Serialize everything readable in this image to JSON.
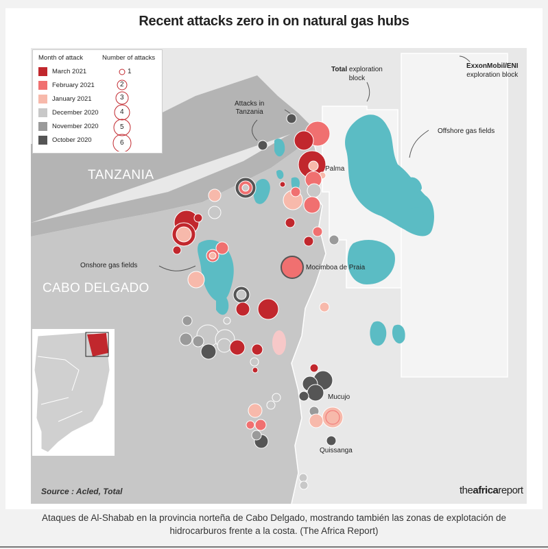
{
  "title": "Recent attacks zero in on natural gas hubs",
  "legend": {
    "month_heading": "Month of attack",
    "count_heading": "Number of attacks",
    "months": [
      {
        "label": "March 2021",
        "color": "#c1272d"
      },
      {
        "label": "February 2021",
        "color": "#f07070"
      },
      {
        "label": "January 2021",
        "color": "#f7b9ab"
      },
      {
        "label": "December 2020",
        "color": "#c8c8c8"
      },
      {
        "label": "November 2020",
        "color": "#9a9a9a"
      },
      {
        "label": "October 2020",
        "color": "#555555"
      }
    ],
    "counts": [
      "1",
      "2",
      "3",
      "4",
      "5",
      "6"
    ]
  },
  "labels": {
    "tanzania": "TANZANIA",
    "cabo_delgado": "CABO DELGADO",
    "total_block_bold": "Total",
    "total_block_rest": " exploration",
    "total_block_line2": "block",
    "exxon_bold": "ExxonMobil/ENI",
    "exxon_line2": "exploration block",
    "offshore": "Offshore gas fields",
    "onshore": "Onshore gas fields",
    "attacks_tz_1": "Attacks in",
    "attacks_tz_2": "Tanzania",
    "palma": "Palma",
    "mocimboa": "Mocimboa de Praia",
    "mucujo": "Mucujo",
    "quissanga": "Quissanga"
  },
  "source": "Source : Acled, Total",
  "brand_a": "the",
  "brand_b": "africa",
  "brand_c": "report",
  "caption_line1": "Ataques de Al-Shabab en la provincia norteña de Cabo Delgado, mostrando también las zonas de explotación de",
  "caption_line2": "hidrocarburos frente a la costa. (The Africa Report)",
  "colors": {
    "gas_field": "#5bbcc4",
    "land": "#b4b4b4",
    "sea": "#e8e8e8"
  }
}
